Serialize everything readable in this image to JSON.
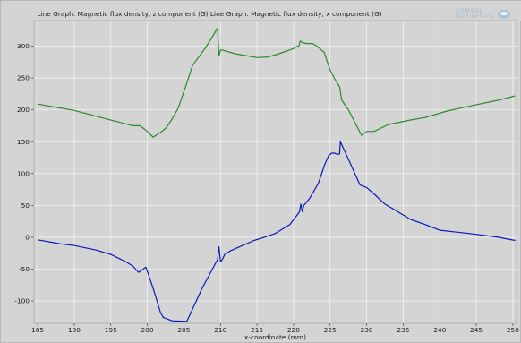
{
  "plot": {
    "title": "Line Graph: Magnetic flux density, z component (G) Line Graph: Magnetic flux density, x component (G)",
    "logo_line1": "COMSOL",
    "logo_line2": "MULTIPHYSICS",
    "background_color": "#d4d4d4",
    "grid_color": "#f2f2f2"
  },
  "chart_data": {
    "type": "line",
    "title": "Line Graph: Magnetic flux density, z component (G) Line Graph: Magnetic flux density, x component (G)",
    "xlabel": "x-coordinate (mm)",
    "ylabel": "",
    "xlim": [
      184.5,
      250.5
    ],
    "ylim": [
      -135,
      340
    ],
    "xticks": [
      185,
      190,
      195,
      200,
      205,
      210,
      215,
      220,
      225,
      230,
      235,
      240,
      245,
      250
    ],
    "yticks": [
      -100,
      -50,
      0,
      50,
      100,
      150,
      200,
      250,
      300
    ],
    "grid": true,
    "legend": "none",
    "series": [
      {
        "color": "#2a8a2a",
        "points": [
          [
            185,
            209
          ],
          [
            188,
            203
          ],
          [
            190,
            199
          ],
          [
            192,
            193
          ],
          [
            194,
            187
          ],
          [
            196,
            181
          ],
          [
            198,
            175
          ],
          [
            199,
            175
          ],
          [
            199.8,
            168
          ],
          [
            200.8,
            157
          ],
          [
            202,
            166
          ],
          [
            202.6,
            172
          ],
          [
            203.2,
            182
          ],
          [
            204.2,
            202
          ],
          [
            205.2,
            235
          ],
          [
            206.2,
            270
          ],
          [
            208,
            298
          ],
          [
            209.6,
            328
          ],
          [
            209.8,
            284
          ],
          [
            210,
            294
          ],
          [
            210.5,
            293
          ],
          [
            212,
            288
          ],
          [
            213.5,
            285
          ],
          [
            215,
            282
          ],
          [
            216.5,
            283
          ],
          [
            218,
            288
          ],
          [
            220,
            296
          ],
          [
            220.5,
            300
          ],
          [
            220.7,
            298
          ],
          [
            220.9,
            308
          ],
          [
            221.3,
            305
          ],
          [
            221.8,
            304
          ],
          [
            222.6,
            304
          ],
          [
            223.2,
            300
          ],
          [
            224.2,
            290
          ],
          [
            225,
            262
          ],
          [
            225.8,
            245
          ],
          [
            226.3,
            236
          ],
          [
            226.6,
            215
          ],
          [
            227.5,
            200
          ],
          [
            229.3,
            160
          ],
          [
            230,
            166
          ],
          [
            231,
            166
          ],
          [
            233,
            177
          ],
          [
            236,
            184
          ],
          [
            238,
            188
          ],
          [
            241,
            198
          ],
          [
            245,
            208
          ],
          [
            248,
            215
          ],
          [
            250.3,
            222
          ]
        ]
      },
      {
        "color": "#0b18b8",
        "points": [
          [
            185,
            -4
          ],
          [
            188,
            -10
          ],
          [
            190,
            -13
          ],
          [
            193,
            -20
          ],
          [
            195,
            -27
          ],
          [
            197,
            -38
          ],
          [
            198,
            -45
          ],
          [
            198.8,
            -55
          ],
          [
            199.8,
            -47
          ],
          [
            200.8,
            -80
          ],
          [
            201.8,
            -118
          ],
          [
            202.2,
            -126
          ],
          [
            203.4,
            -131
          ],
          [
            205.4,
            -132
          ],
          [
            207.5,
            -80
          ],
          [
            209.6,
            -35
          ],
          [
            209.8,
            -15
          ],
          [
            210,
            -38
          ],
          [
            210.2,
            -36
          ],
          [
            210.6,
            -27
          ],
          [
            211.4,
            -21
          ],
          [
            213,
            -13
          ],
          [
            214.6,
            -5
          ],
          [
            216,
            0
          ],
          [
            217.5,
            6
          ],
          [
            219.5,
            20
          ],
          [
            220.5,
            35
          ],
          [
            220.8,
            40
          ],
          [
            221.0,
            52
          ],
          [
            221.2,
            40
          ],
          [
            221.4,
            50
          ],
          [
            222.2,
            61
          ],
          [
            223.4,
            85
          ],
          [
            224.3,
            115
          ],
          [
            224.8,
            128
          ],
          [
            225.2,
            132
          ],
          [
            225.6,
            132
          ],
          [
            226.1,
            130
          ],
          [
            226.3,
            131
          ],
          [
            226.4,
            150
          ],
          [
            227.4,
            125
          ],
          [
            229.1,
            82
          ],
          [
            230,
            78
          ],
          [
            231,
            68
          ],
          [
            232.5,
            52
          ],
          [
            234,
            42
          ],
          [
            236,
            28
          ],
          [
            238,
            20
          ],
          [
            240,
            11
          ],
          [
            244,
            6
          ],
          [
            248,
            0
          ],
          [
            250.3,
            -5
          ]
        ]
      }
    ]
  }
}
